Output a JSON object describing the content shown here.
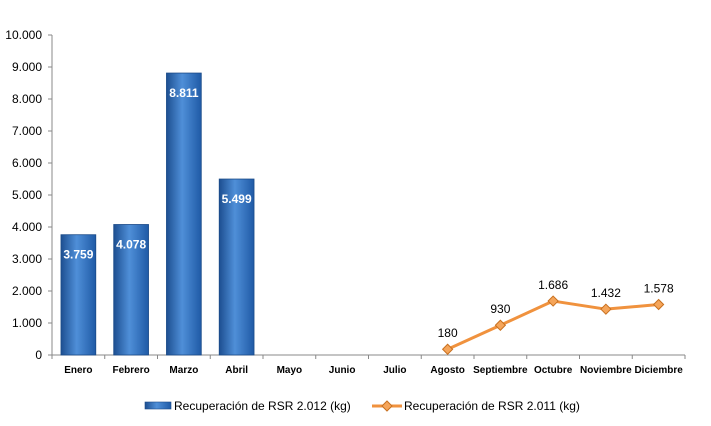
{
  "chart_data": {
    "type": "bar",
    "categories": [
      "Enero",
      "Febrero",
      "Marzo",
      "Abril",
      "Mayo",
      "Junio",
      "Julio",
      "Agosto",
      "Septiembre",
      "Octubre",
      "Noviembre",
      "Diciembre"
    ],
    "ylim": [
      0,
      10000
    ],
    "yticks": [
      0,
      1000,
      2000,
      3000,
      4000,
      5000,
      6000,
      7000,
      8000,
      9000,
      10000
    ],
    "ytick_labels": [
      "0",
      "1.000",
      "2.000",
      "3.000",
      "4.000",
      "5.000",
      "6.000",
      "7.000",
      "8.000",
      "9.000",
      "10.000"
    ],
    "grid": false,
    "legend_position": "bottom",
    "series": [
      {
        "name": "Recuperación de RSR 2.012 (kg)",
        "kind": "bar",
        "color": "#3a78c4",
        "values": [
          3759,
          4078,
          8811,
          5499,
          null,
          null,
          null,
          null,
          null,
          null,
          null,
          null
        ],
        "labels": [
          "3.759",
          "4.078",
          "8.811",
          "5.499",
          "",
          "",
          "",
          "",
          "",
          "",
          "",
          ""
        ]
      },
      {
        "name": "Recuperación de RSR 2.011 (kg)",
        "kind": "line",
        "color": "#f0923e",
        "values": [
          null,
          null,
          null,
          null,
          null,
          null,
          null,
          180,
          930,
          1686,
          1432,
          1578
        ],
        "labels": [
          "",
          "",
          "",
          "",
          "",
          "",
          "",
          "180",
          "930",
          "1.686",
          "1.432",
          "1.578"
        ]
      }
    ]
  }
}
